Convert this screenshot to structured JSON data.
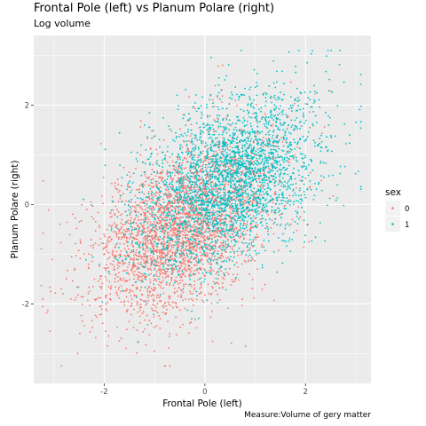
{
  "header": {
    "title": "Frontal Pole (left) vs Planum Polare (right)",
    "subtitle": "Log volume",
    "caption": "Measure:Volume of gery matter"
  },
  "chart_data": {
    "type": "scatter",
    "title": "Frontal Pole (left) vs Planum Polare (right)",
    "subtitle": "Log volume",
    "xlabel": "Frontal Pole (left)",
    "ylabel": "Planum Polare (right)",
    "xlim": [
      -3.4,
      3.3
    ],
    "ylim": [
      -3.6,
      3.4
    ],
    "xticks": [
      -2,
      0,
      2
    ],
    "yticks": [
      -2,
      0,
      2
    ],
    "xtick_labels": [
      "-2",
      "0",
      "2"
    ],
    "ytick_labels": [
      "-2",
      "0",
      "2"
    ],
    "grid": true,
    "legend": {
      "title": "sex",
      "position": "right",
      "entries": [
        "0",
        "1"
      ]
    },
    "series": [
      {
        "name": "0",
        "color": "#F8766D",
        "n_points_approx": 3000,
        "mean": [
          -0.45,
          -0.45
        ],
        "sd": [
          0.9,
          0.9
        ],
        "correlation": 0.45
      },
      {
        "name": "1",
        "color": "#00BFC4",
        "n_points_approx": 3000,
        "mean": [
          0.45,
          0.45
        ],
        "sd": [
          0.9,
          0.9
        ],
        "correlation": 0.45
      }
    ],
    "clip": {
      "min": -3.25,
      "max": 3.1
    },
    "panel_background": "#EBEBEB",
    "grid_color": "#FFFFFF"
  }
}
